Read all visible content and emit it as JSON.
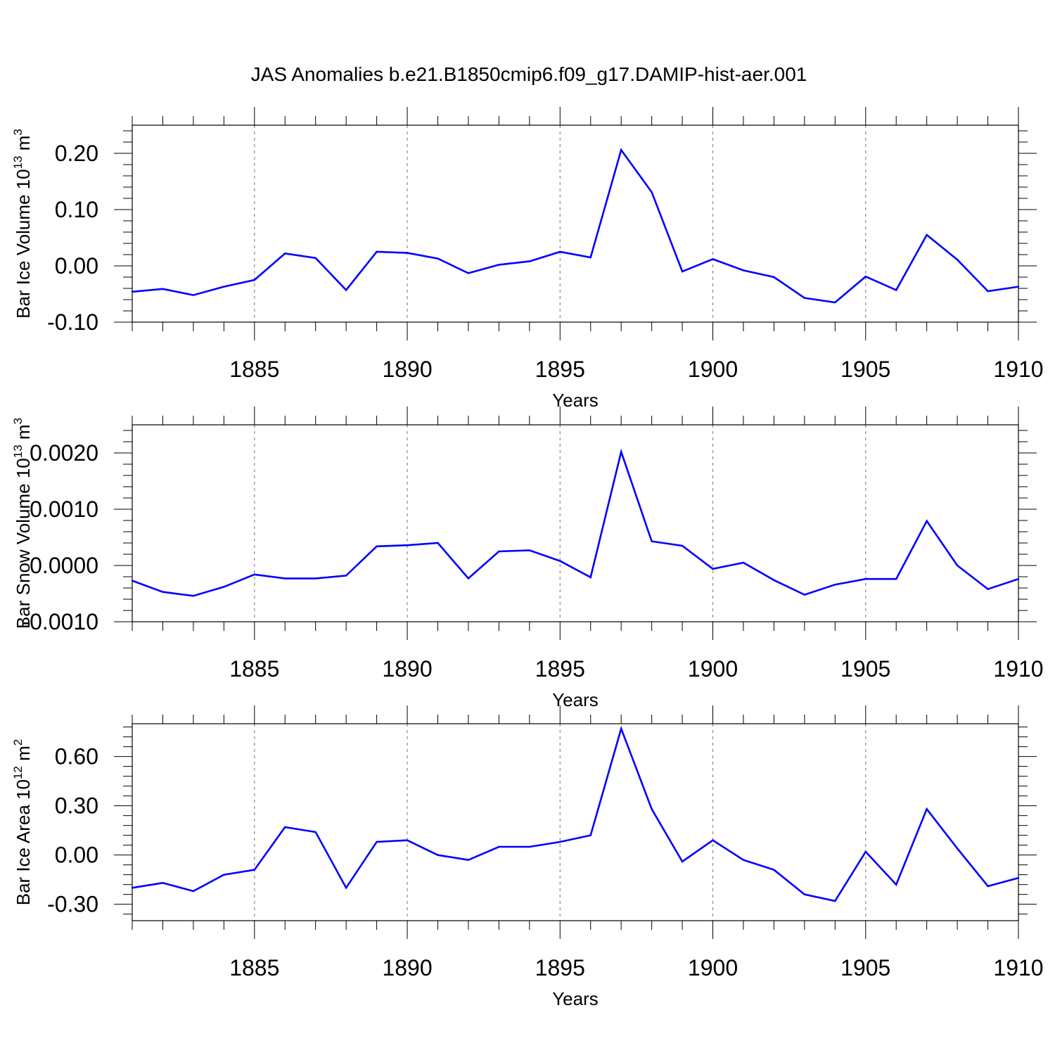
{
  "title": "JAS Anomalies b.e21.B1850cmip6.f09_g17.DAMIP-hist-aer.001",
  "colors": {
    "series": "#0000ff",
    "axis": "#000000",
    "grid": "#888888"
  },
  "chart_data": [
    {
      "type": "line",
      "ylabel": {
        "text": "Bar Ice Volume 10",
        "sup": "13",
        "unit": " m",
        "unit_sup": "3"
      },
      "xlabel": "Years",
      "xlim": [
        1881,
        1910
      ],
      "ylim": [
        -0.1,
        0.25
      ],
      "yticks": [
        -0.1,
        0.0,
        0.1,
        0.2
      ],
      "ytick_labels": [
        "-0.10",
        "0.00",
        "0.10",
        "0.20"
      ],
      "xticks": [
        1885,
        1890,
        1895,
        1900,
        1905,
        1910
      ],
      "xtick_labels": [
        "1885",
        "1890",
        "1895",
        "1900",
        "1905",
        "1910"
      ],
      "series": [
        {
          "name": "Bar Ice Volume",
          "x": [
            1881,
            1882,
            1883,
            1884,
            1885,
            1886,
            1887,
            1888,
            1889,
            1890,
            1891,
            1892,
            1893,
            1894,
            1895,
            1896,
            1897,
            1898,
            1899,
            1900,
            1901,
            1902,
            1903,
            1904,
            1905,
            1906,
            1907,
            1908,
            1909,
            1910
          ],
          "values": [
            -0.046,
            -0.041,
            -0.052,
            -0.037,
            -0.025,
            0.022,
            0.014,
            -0.043,
            0.025,
            0.023,
            0.013,
            -0.013,
            0.002,
            0.008,
            0.025,
            0.015,
            0.206,
            0.131,
            -0.01,
            0.012,
            -0.008,
            -0.02,
            -0.057,
            -0.065,
            -0.019,
            -0.043,
            0.055,
            0.011,
            -0.045,
            -0.037
          ]
        }
      ]
    },
    {
      "type": "line",
      "ylabel": {
        "text": "Bar Snow Volume 10",
        "sup": "13",
        "unit": " m",
        "unit_sup": "3"
      },
      "xlabel": "Years",
      "xlim": [
        1881,
        1910
      ],
      "ylim": [
        -0.001,
        0.0025
      ],
      "yticks": [
        -0.001,
        0.0,
        0.001,
        0.002
      ],
      "ytick_labels": [
        "-0.0010",
        "0.0000",
        "0.0010",
        "0.0020"
      ],
      "xticks": [
        1885,
        1890,
        1895,
        1900,
        1905,
        1910
      ],
      "xtick_labels": [
        "1885",
        "1890",
        "1895",
        "1900",
        "1905",
        "1910"
      ],
      "series": [
        {
          "name": "Bar Snow Volume",
          "x": [
            1881,
            1882,
            1883,
            1884,
            1885,
            1886,
            1887,
            1888,
            1889,
            1890,
            1891,
            1892,
            1893,
            1894,
            1895,
            1896,
            1897,
            1898,
            1899,
            1900,
            1901,
            1902,
            1903,
            1904,
            1905,
            1906,
            1907,
            1908,
            1909,
            1910
          ],
          "values": [
            -0.00027,
            -0.00047,
            -0.00054,
            -0.00038,
            -0.00016,
            -0.00023,
            -0.00023,
            -0.00018,
            0.00034,
            0.00036,
            0.0004,
            -0.00023,
            0.00025,
            0.00027,
            8e-05,
            -0.00021,
            0.00202,
            0.00043,
            0.00035,
            -6e-05,
            5e-05,
            -0.00026,
            -0.00052,
            -0.00034,
            -0.00024,
            -0.00024,
            0.00079,
            0.0,
            -0.00042,
            -0.00024
          ]
        }
      ]
    },
    {
      "type": "line",
      "ylabel": {
        "text": "Bar Ice Area 10",
        "sup": "12",
        "unit": " m",
        "unit_sup": "2"
      },
      "xlabel": "Years",
      "xlim": [
        1881,
        1910
      ],
      "ylim": [
        -0.4,
        0.8
      ],
      "yticks": [
        -0.3,
        0.0,
        0.3,
        0.6
      ],
      "ytick_labels": [
        "-0.30",
        "0.00",
        "0.30",
        "0.60"
      ],
      "xticks": [
        1885,
        1890,
        1895,
        1900,
        1905,
        1910
      ],
      "xtick_labels": [
        "1885",
        "1890",
        "1895",
        "1900",
        "1905",
        "1910"
      ],
      "series": [
        {
          "name": "Bar Ice Area",
          "x": [
            1881,
            1882,
            1883,
            1884,
            1885,
            1886,
            1887,
            1888,
            1889,
            1890,
            1891,
            1892,
            1893,
            1894,
            1895,
            1896,
            1897,
            1898,
            1899,
            1900,
            1901,
            1902,
            1903,
            1904,
            1905,
            1906,
            1907,
            1908,
            1909,
            1910
          ],
          "values": [
            -0.2,
            -0.17,
            -0.22,
            -0.12,
            -0.09,
            0.17,
            0.14,
            -0.2,
            0.08,
            0.09,
            0.0,
            -0.03,
            0.05,
            0.05,
            0.08,
            0.12,
            0.77,
            0.28,
            -0.04,
            0.09,
            -0.03,
            -0.09,
            -0.24,
            -0.28,
            0.02,
            -0.18,
            0.28,
            0.04,
            -0.19,
            -0.14
          ]
        }
      ]
    }
  ]
}
